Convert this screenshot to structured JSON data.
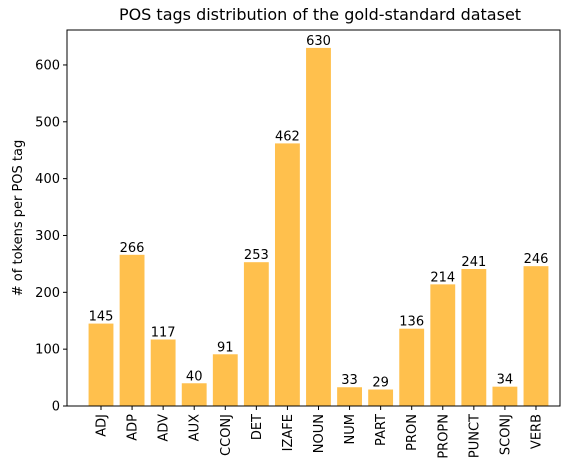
{
  "chart_data": {
    "type": "bar",
    "title": "POS tags distribution of the gold-standard dataset",
    "y_label": "# of tokens per POS tag",
    "categories": [
      "ADJ",
      "ADP",
      "ADV",
      "AUX",
      "CCONJ",
      "DET",
      "IZAFE",
      "NOUN",
      "NUM",
      "PART",
      "PRON",
      "PROPN",
      "PUNCT",
      "SCONJ",
      "VERB"
    ],
    "values": [
      145,
      266,
      117,
      40,
      91,
      253,
      462,
      630,
      33,
      29,
      136,
      214,
      241,
      34,
      246
    ],
    "color": "#ffc04d",
    "ylim": [
      0,
      661.5
    ],
    "yticks": [
      0,
      100,
      200,
      300,
      400,
      500,
      600
    ],
    "grid": false
  }
}
